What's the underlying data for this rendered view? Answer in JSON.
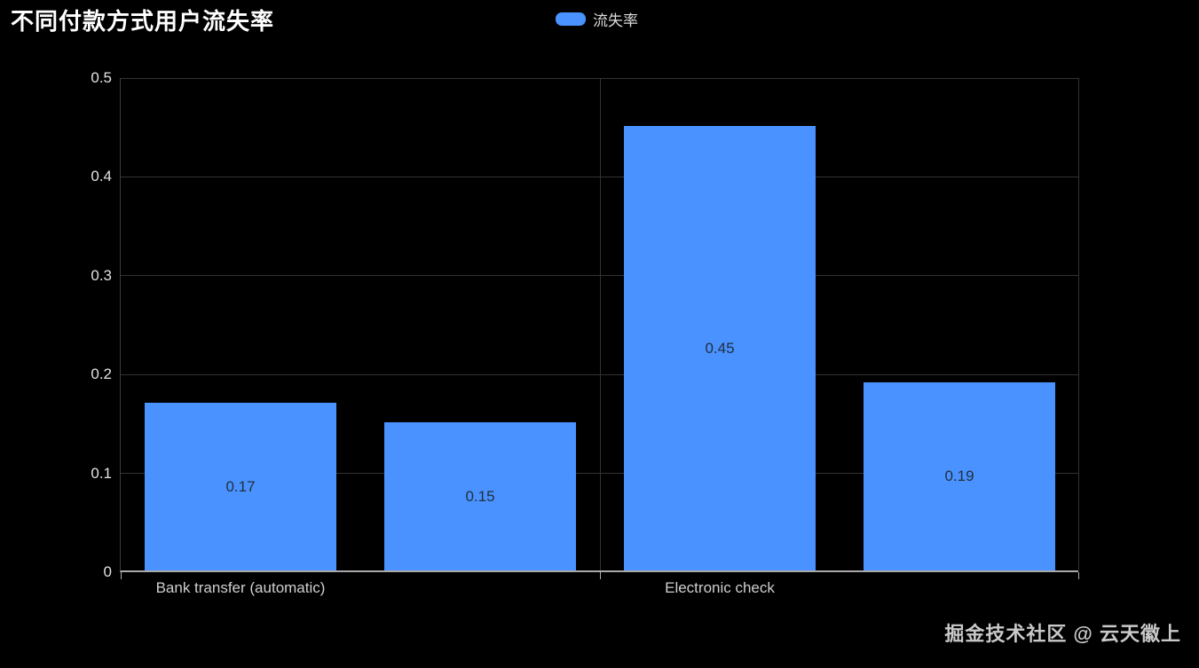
{
  "title": "不同付款方式用户流失率",
  "legend": {
    "items": [
      {
        "label": "流失率",
        "color": "#4992ff"
      }
    ]
  },
  "watermark": "掘金技术社区 @ 云天徽上",
  "colors": {
    "background": "#000000",
    "bar": "#4992ff",
    "grid": "#333333",
    "axis_line": "#a9a9a9",
    "y_axis_line": "#3d3d3d",
    "bar_label": "#22303f",
    "tick_label": "#e2e2e2",
    "title": "#ffffff"
  },
  "chart_data": {
    "type": "bar",
    "title": "不同付款方式用户流失率",
    "series_name": "流失率",
    "values": [
      0.17,
      0.15,
      0.45,
      0.19
    ],
    "value_labels": [
      "0.17",
      "0.15",
      "0.45",
      "0.19"
    ],
    "x_axis_labels": [
      {
        "text": "Bank transfer (automatic)",
        "bar_index": 0
      },
      {
        "text": "Electronic check",
        "bar_index": 2
      }
    ],
    "y_ticks": [
      "0",
      "0.1",
      "0.2",
      "0.3",
      "0.4",
      "0.5"
    ],
    "ylim": [
      0,
      0.5
    ],
    "grid": true,
    "legend_position": "top-center",
    "value_label_position": "inside-center",
    "x_boundary_line_interval": 2
  }
}
